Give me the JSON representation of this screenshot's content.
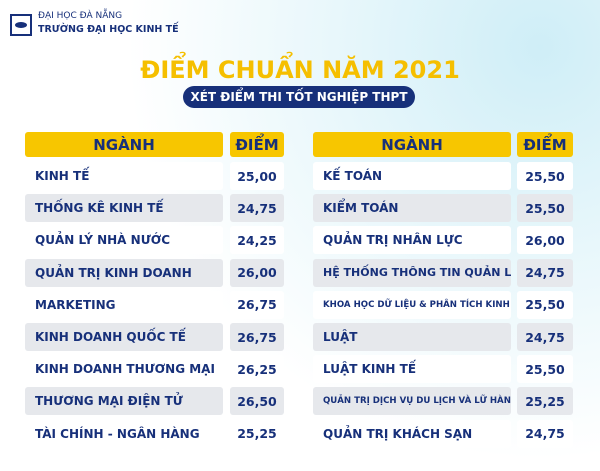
{
  "header": {
    "org": "ĐẠI HỌC ĐÀ NẴNG",
    "school": "TRƯỜNG ĐẠI HỌC KINH TẾ"
  },
  "title": "ĐIỂM CHUẨN NĂM 2021",
  "subtitle": "XÉT ĐIỂM THI TỐT NGHIỆP THPT",
  "tables": [
    {
      "columns": [
        "NGÀNH",
        "ĐIỂM"
      ],
      "rows": [
        [
          "KINH TẾ",
          "25,00"
        ],
        [
          "THỐNG KÊ KINH TẾ",
          "24,75"
        ],
        [
          "QUẢN LÝ NHÀ NƯỚC",
          "24,25"
        ],
        [
          "QUẢN TRỊ KINH DOANH",
          "26,00"
        ],
        [
          "MARKETING",
          "26,75"
        ],
        [
          "KINH DOANH QUỐC TẾ",
          "26,75"
        ],
        [
          "KINH DOANH THƯƠNG MẠI",
          "26,25"
        ],
        [
          "THƯƠNG MẠI ĐIỆN TỬ",
          "26,50"
        ],
        [
          "TÀI CHÍNH - NGÂN HÀNG",
          "25,25"
        ]
      ]
    },
    {
      "columns": [
        "NGÀNH",
        "ĐIỂM"
      ],
      "rows": [
        [
          "KẾ TOÁN",
          "25,50"
        ],
        [
          "KIỂM TOÁN",
          "25,50"
        ],
        [
          "QUẢN TRỊ NHÂN LỰC",
          "26,00"
        ],
        [
          "HỆ THỐNG THÔNG TIN QUẢN LÍ",
          "24,75"
        ],
        [
          "KHOA HỌC DỮ LIỆU & PHÂN TÍCH KINH DOANH",
          "25,50"
        ],
        [
          "LUẬT",
          "24,75"
        ],
        [
          "LUẬT KINH TẾ",
          "25,50"
        ],
        [
          "QUẢN TRỊ DỊCH VỤ DU LỊCH VÀ LỮ HÀNH",
          "25,25"
        ],
        [
          "QUẢN TRỊ KHÁCH SẠN",
          "24,75"
        ]
      ]
    }
  ]
}
